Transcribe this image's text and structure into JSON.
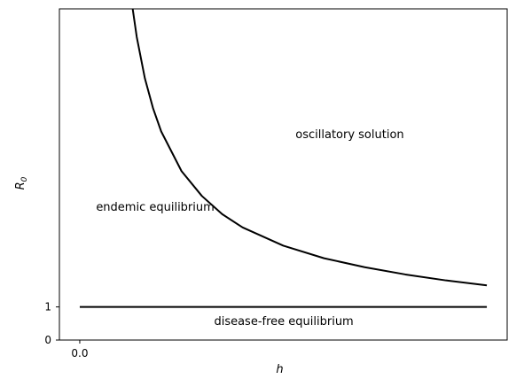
{
  "chart_data": {
    "type": "line",
    "title": "",
    "xlabel": "h",
    "ylabel": "R",
    "ylabel_subscript": "0",
    "xlim": [
      -0.05,
      1.05
    ],
    "ylim": [
      0,
      10
    ],
    "x_ticks": [
      {
        "value": 0.0,
        "label": "0.0"
      }
    ],
    "y_ticks": [
      {
        "value": 0,
        "label": "0"
      },
      {
        "value": 1,
        "label": "1"
      }
    ],
    "grid": false,
    "legend": "none",
    "line_color": "#000000",
    "series": [
      {
        "x": [
          0.13,
          0.14,
          0.16,
          0.18,
          0.2,
          0.25,
          0.3,
          0.35,
          0.4,
          0.5,
          0.6,
          0.7,
          0.8,
          0.9,
          1.0
        ],
        "y": [
          10.0,
          9.15,
          7.9,
          7.0,
          6.3,
          5.1,
          4.35,
          3.8,
          3.4,
          2.85,
          2.47,
          2.2,
          1.98,
          1.8,
          1.65
        ]
      },
      {
        "x": [
          0.0,
          1.0
        ],
        "y": [
          1.0,
          1.0
        ]
      }
    ],
    "annotations": [
      {
        "text": "oscillatory solution",
        "x": 0.53,
        "y": 6.1
      },
      {
        "text": "endemic equilibrium",
        "x": 0.04,
        "y": 3.9
      },
      {
        "text": "disease-free equilibrium",
        "x": 0.33,
        "y": 0.45
      }
    ]
  }
}
